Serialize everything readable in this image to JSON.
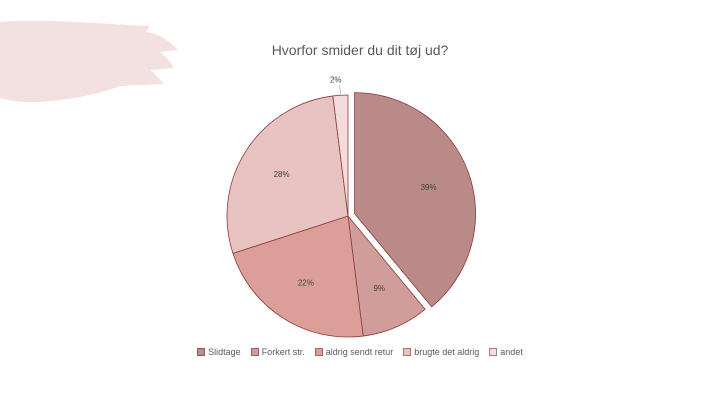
{
  "chart_data": {
    "type": "pie",
    "title": "Hvorfor smider du dit tøj ud?",
    "categories": [
      "Slidtage",
      "Forkert str.",
      "aldrig sendt retur",
      "brugte det aldrig",
      "andet"
    ],
    "values": [
      39,
      9,
      22,
      28,
      2
    ],
    "data_labels": [
      "39%",
      "9%",
      "22%",
      "28%",
      "2%"
    ],
    "colors": [
      "#b98a87",
      "#d19d9a",
      "#dc9e98",
      "#e9c3c1",
      "#f3dcdc"
    ],
    "exploded": [
      true,
      false,
      false,
      false,
      false
    ],
    "legend_position": "bottom"
  }
}
